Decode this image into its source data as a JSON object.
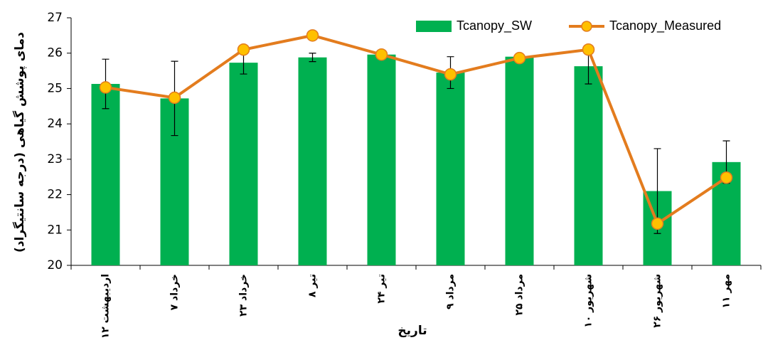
{
  "chart_data": {
    "type": "bar-line",
    "x_label": "تاریخ",
    "y_label": "دمای پوشش گیاهی (درجه سانتیگراد)",
    "categories": [
      "۱۲ اردیبهشت",
      "۷ خرداد",
      "۲۳ خرداد",
      "۸ تیر",
      "۲۴ تیر",
      "۹ مرداد",
      "۲۵ مرداد",
      "۱۰ شهریور",
      "۲۶ شهریور",
      "۱۱ مهر"
    ],
    "series": [
      {
        "name": "Tcanopy_SW",
        "type": "bar",
        "color": "#00b050",
        "values": [
          25.13,
          24.72,
          25.73,
          25.88,
          25.96,
          25.45,
          25.9,
          25.63,
          22.1,
          22.92
        ],
        "error": [
          0.7,
          1.05,
          0.32,
          0.12,
          0,
          0.45,
          0,
          0.5,
          1.2,
          0.6
        ]
      },
      {
        "name": "Tcanopy_Measured",
        "type": "line",
        "color": "#e37c1e",
        "marker_color": "#ffc000",
        "values": [
          25.03,
          24.74,
          26.1,
          26.5,
          25.96,
          25.4,
          25.86,
          26.1,
          21.18,
          22.48
        ]
      }
    ],
    "ylim": [
      20,
      27
    ],
    "yticks": [
      20,
      21,
      22,
      23,
      24,
      25,
      26,
      27
    ],
    "legend": "top-right"
  }
}
